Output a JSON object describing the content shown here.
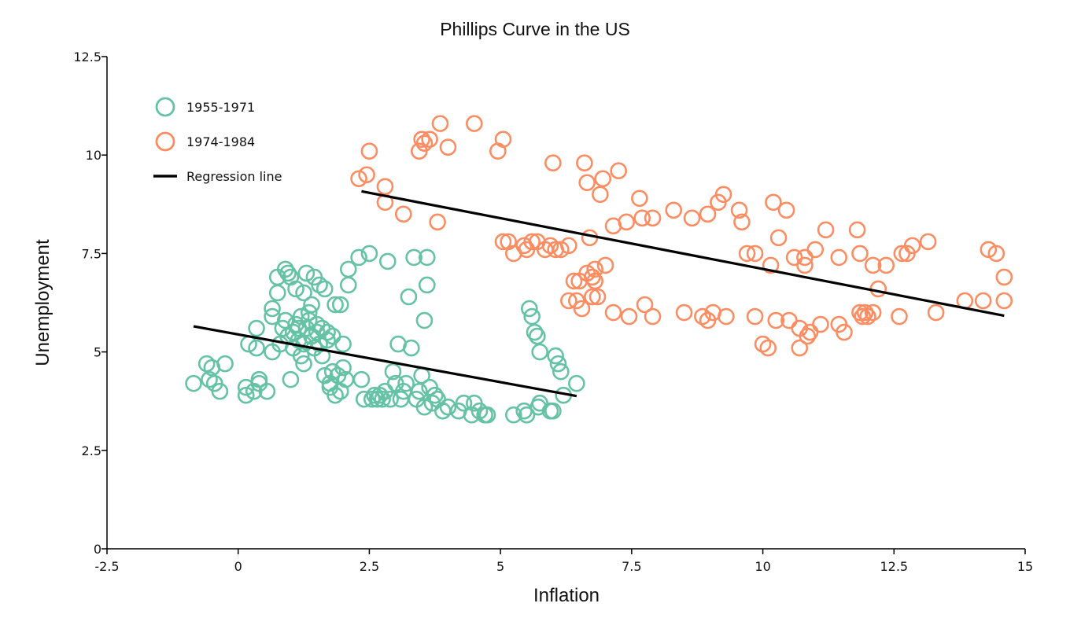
{
  "chart_data": {
    "type": "scatter",
    "title": "Phillips Curve in the US",
    "xlabel": "Inflation",
    "ylabel": "Unemployment",
    "xlim": [
      -2.5,
      15
    ],
    "ylim": [
      0,
      12.5
    ],
    "xticks": [
      -2.5,
      0,
      2.5,
      5,
      7.5,
      10,
      12.5,
      15
    ],
    "xtick_labels": [
      "-2.5",
      "0",
      "2.5",
      "5",
      "7.5",
      "10",
      "12.5",
      "15"
    ],
    "yticks": [
      0,
      2.5,
      5,
      7.5,
      10,
      12.5
    ],
    "ytick_labels": [
      "0",
      "2.5",
      "5",
      "7.5",
      "10",
      "12.5"
    ],
    "grid": false,
    "legend_position": "top-left",
    "series": [
      {
        "name": "1955-1971",
        "color": "#66c2a5",
        "marker": "open-circle",
        "points": [
          [
            -0.85,
            4.2
          ],
          [
            -0.6,
            4.7
          ],
          [
            -0.55,
            4.3
          ],
          [
            -0.5,
            4.6
          ],
          [
            -0.45,
            4.2
          ],
          [
            -0.35,
            4.0
          ],
          [
            -0.25,
            4.7
          ],
          [
            0.15,
            3.9
          ],
          [
            0.15,
            4.1
          ],
          [
            0.2,
            5.2
          ],
          [
            0.3,
            4.0
          ],
          [
            0.35,
            5.6
          ],
          [
            0.35,
            5.1
          ],
          [
            0.4,
            4.3
          ],
          [
            0.4,
            4.2
          ],
          [
            0.55,
            4.0
          ],
          [
            0.65,
            5.0
          ],
          [
            0.65,
            6.1
          ],
          [
            0.65,
            5.9
          ],
          [
            0.75,
            6.9
          ],
          [
            0.75,
            6.5
          ],
          [
            0.8,
            5.2
          ],
          [
            0.85,
            5.6
          ],
          [
            0.9,
            5.8
          ],
          [
            0.9,
            7.1
          ],
          [
            0.95,
            7.0
          ],
          [
            0.95,
            5.4
          ],
          [
            1.0,
            4.3
          ],
          [
            1.0,
            6.9
          ],
          [
            1.05,
            5.1
          ],
          [
            1.05,
            5.5
          ],
          [
            1.1,
            5.7
          ],
          [
            1.1,
            6.6
          ],
          [
            1.15,
            5.3
          ],
          [
            1.15,
            5.6
          ],
          [
            1.2,
            4.9
          ],
          [
            1.2,
            5.9
          ],
          [
            1.25,
            4.7
          ],
          [
            1.25,
            5.2
          ],
          [
            1.25,
            6.5
          ],
          [
            1.3,
            7.0
          ],
          [
            1.3,
            5.6
          ],
          [
            1.35,
            5.8
          ],
          [
            1.35,
            6.0
          ],
          [
            1.4,
            5.4
          ],
          [
            1.4,
            6.2
          ],
          [
            1.45,
            6.9
          ],
          [
            1.45,
            5.1
          ],
          [
            1.5,
            5.7
          ],
          [
            1.5,
            5.5
          ],
          [
            1.55,
            6.7
          ],
          [
            1.55,
            5.2
          ],
          [
            1.6,
            5.6
          ],
          [
            1.6,
            4.9
          ],
          [
            1.65,
            4.4
          ],
          [
            1.65,
            6.6
          ],
          [
            1.7,
            5.5
          ],
          [
            1.7,
            5.3
          ],
          [
            1.75,
            4.2
          ],
          [
            1.75,
            4.1
          ],
          [
            1.8,
            4.5
          ],
          [
            1.8,
            5.4
          ],
          [
            1.85,
            6.2
          ],
          [
            1.85,
            3.9
          ],
          [
            1.9,
            4.4
          ],
          [
            1.95,
            4.0
          ],
          [
            1.95,
            6.2
          ],
          [
            2.0,
            5.2
          ],
          [
            2.0,
            4.6
          ],
          [
            2.05,
            4.3
          ],
          [
            2.1,
            6.7
          ],
          [
            2.1,
            7.1
          ],
          [
            2.3,
            7.4
          ],
          [
            2.35,
            4.3
          ],
          [
            2.4,
            3.8
          ],
          [
            2.5,
            7.5
          ],
          [
            2.55,
            3.8
          ],
          [
            2.6,
            3.9
          ],
          [
            2.65,
            3.8
          ],
          [
            2.7,
            3.9
          ],
          [
            2.75,
            3.8
          ],
          [
            2.8,
            4.0
          ],
          [
            2.85,
            7.3
          ],
          [
            2.9,
            3.8
          ],
          [
            2.95,
            4.5
          ],
          [
            3.0,
            4.2
          ],
          [
            3.05,
            5.2
          ],
          [
            3.1,
            3.8
          ],
          [
            3.15,
            4.0
          ],
          [
            3.2,
            4.2
          ],
          [
            3.25,
            6.4
          ],
          [
            3.3,
            5.1
          ],
          [
            3.35,
            7.4
          ],
          [
            3.4,
            3.8
          ],
          [
            3.45,
            4.0
          ],
          [
            3.5,
            4.4
          ],
          [
            3.55,
            5.8
          ],
          [
            3.55,
            3.6
          ],
          [
            3.6,
            7.4
          ],
          [
            3.6,
            6.7
          ],
          [
            3.65,
            4.1
          ],
          [
            3.7,
            3.7
          ],
          [
            3.75,
            3.9
          ],
          [
            3.8,
            3.8
          ],
          [
            3.9,
            3.5
          ],
          [
            4.0,
            3.6
          ],
          [
            4.2,
            3.5
          ],
          [
            4.3,
            3.7
          ],
          [
            4.45,
            3.4
          ],
          [
            4.5,
            3.7
          ],
          [
            4.6,
            3.5
          ],
          [
            4.7,
            3.4
          ],
          [
            4.75,
            3.4
          ],
          [
            5.25,
            3.4
          ],
          [
            5.45,
            3.5
          ],
          [
            5.5,
            3.4
          ],
          [
            5.55,
            6.1
          ],
          [
            5.6,
            5.9
          ],
          [
            5.65,
            5.5
          ],
          [
            5.7,
            5.4
          ],
          [
            5.72,
            3.6
          ],
          [
            5.75,
            5.0
          ],
          [
            5.75,
            3.7
          ],
          [
            5.95,
            3.5
          ],
          [
            6.0,
            3.5
          ],
          [
            6.05,
            4.9
          ],
          [
            6.1,
            4.7
          ],
          [
            6.15,
            4.5
          ],
          [
            6.2,
            3.9
          ],
          [
            6.45,
            4.2
          ]
        ]
      },
      {
        "name": "1974-1984",
        "color": "#fc8d62",
        "marker": "open-circle",
        "points": [
          [
            2.3,
            9.4
          ],
          [
            2.45,
            9.5
          ],
          [
            2.5,
            10.1
          ],
          [
            2.8,
            9.2
          ],
          [
            2.8,
            8.8
          ],
          [
            3.15,
            8.5
          ],
          [
            3.45,
            10.1
          ],
          [
            3.5,
            10.4
          ],
          [
            3.55,
            10.3
          ],
          [
            3.65,
            10.4
          ],
          [
            3.8,
            8.3
          ],
          [
            3.85,
            10.8
          ],
          [
            4.0,
            10.2
          ],
          [
            4.5,
            10.8
          ],
          [
            4.95,
            10.1
          ],
          [
            5.05,
            10.4
          ],
          [
            5.05,
            7.8
          ],
          [
            5.15,
            7.8
          ],
          [
            5.25,
            7.5
          ],
          [
            5.45,
            7.7
          ],
          [
            5.5,
            7.6
          ],
          [
            5.6,
            7.8
          ],
          [
            5.7,
            7.8
          ],
          [
            5.85,
            7.6
          ],
          [
            5.95,
            7.7
          ],
          [
            6.0,
            9.8
          ],
          [
            6.05,
            7.6
          ],
          [
            6.15,
            7.6
          ],
          [
            6.3,
            6.3
          ],
          [
            6.3,
            7.7
          ],
          [
            6.4,
            6.8
          ],
          [
            6.45,
            6.3
          ],
          [
            6.5,
            6.8
          ],
          [
            6.55,
            6.1
          ],
          [
            6.6,
            9.8
          ],
          [
            6.65,
            9.3
          ],
          [
            6.65,
            7.0
          ],
          [
            6.7,
            7.9
          ],
          [
            6.75,
            6.4
          ],
          [
            6.75,
            6.9
          ],
          [
            6.8,
            7.1
          ],
          [
            6.8,
            6.8
          ],
          [
            6.85,
            6.4
          ],
          [
            6.9,
            9.0
          ],
          [
            6.95,
            9.4
          ],
          [
            7.0,
            7.2
          ],
          [
            7.15,
            8.2
          ],
          [
            7.15,
            6.0
          ],
          [
            7.25,
            9.6
          ],
          [
            7.4,
            8.3
          ],
          [
            7.45,
            5.9
          ],
          [
            7.65,
            8.9
          ],
          [
            7.7,
            8.4
          ],
          [
            7.75,
            6.2
          ],
          [
            7.9,
            5.9
          ],
          [
            7.9,
            8.4
          ],
          [
            8.3,
            8.6
          ],
          [
            8.5,
            6.0
          ],
          [
            8.65,
            8.4
          ],
          [
            8.85,
            5.9
          ],
          [
            8.95,
            5.8
          ],
          [
            8.95,
            8.5
          ],
          [
            9.05,
            6.0
          ],
          [
            9.15,
            8.8
          ],
          [
            9.25,
            9.0
          ],
          [
            9.3,
            5.9
          ],
          [
            9.55,
            8.6
          ],
          [
            9.6,
            8.3
          ],
          [
            9.7,
            7.5
          ],
          [
            9.85,
            7.5
          ],
          [
            9.85,
            5.9
          ],
          [
            10.0,
            5.2
          ],
          [
            10.1,
            5.1
          ],
          [
            10.15,
            7.2
          ],
          [
            10.2,
            8.8
          ],
          [
            10.25,
            5.8
          ],
          [
            10.3,
            7.9
          ],
          [
            10.45,
            8.6
          ],
          [
            10.5,
            5.8
          ],
          [
            10.6,
            7.4
          ],
          [
            10.7,
            5.6
          ],
          [
            10.7,
            5.1
          ],
          [
            10.8,
            7.4
          ],
          [
            10.8,
            7.2
          ],
          [
            10.85,
            5.4
          ],
          [
            10.9,
            5.5
          ],
          [
            11.0,
            7.6
          ],
          [
            11.1,
            5.7
          ],
          [
            11.2,
            8.1
          ],
          [
            11.45,
            5.7
          ],
          [
            11.45,
            7.4
          ],
          [
            11.55,
            5.5
          ],
          [
            11.8,
            8.1
          ],
          [
            11.85,
            7.5
          ],
          [
            11.85,
            6.0
          ],
          [
            11.9,
            5.9
          ],
          [
            11.95,
            6.0
          ],
          [
            12.0,
            5.9
          ],
          [
            12.1,
            6.0
          ],
          [
            12.1,
            7.2
          ],
          [
            12.2,
            6.6
          ],
          [
            12.35,
            7.2
          ],
          [
            12.6,
            5.9
          ],
          [
            12.65,
            7.5
          ],
          [
            12.75,
            7.5
          ],
          [
            12.85,
            7.7
          ],
          [
            13.15,
            7.8
          ],
          [
            13.3,
            6.0
          ],
          [
            13.85,
            6.3
          ],
          [
            14.2,
            6.3
          ],
          [
            14.3,
            7.6
          ],
          [
            14.45,
            7.5
          ],
          [
            14.6,
            6.9
          ],
          [
            14.6,
            6.3
          ]
        ]
      }
    ],
    "regression_lines": [
      {
        "name": "Regression line",
        "color": "#000000",
        "x": [
          -0.85,
          6.45
        ],
        "y": [
          5.65,
          3.88
        ]
      },
      {
        "name": "Regression line",
        "color": "#000000",
        "x": [
          2.35,
          14.6
        ],
        "y": [
          9.08,
          5.92
        ]
      }
    ],
    "legend": [
      {
        "label": "1955-1971",
        "kind": "circle",
        "color": "#66c2a5"
      },
      {
        "label": "1974-1984",
        "kind": "circle",
        "color": "#fc8d62"
      },
      {
        "label": "Regression line",
        "kind": "line",
        "color": "#000000"
      }
    ]
  }
}
